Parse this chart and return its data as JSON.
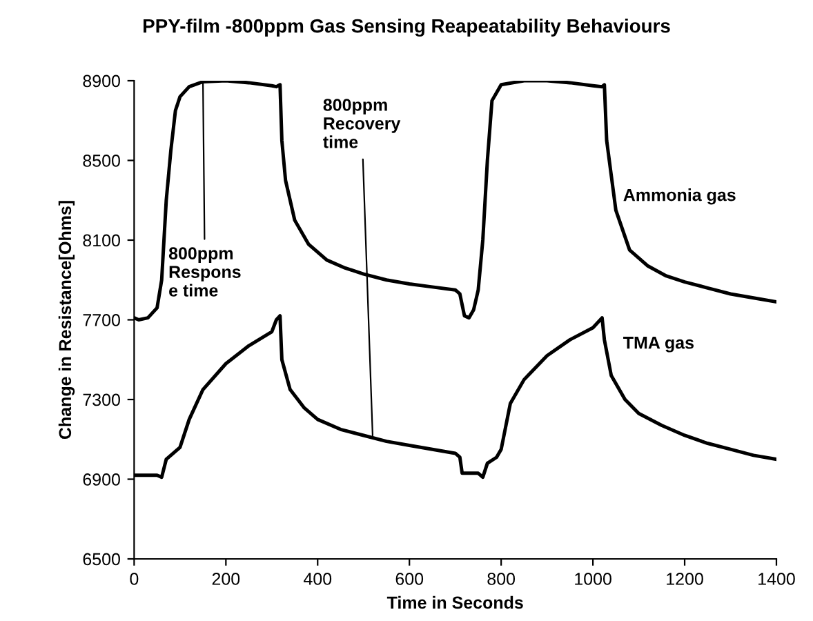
{
  "chart_data": {
    "type": "line",
    "title": "PPY-film -800ppm Gas Sensing Reapeatability Behaviours",
    "xlabel": "Time in Seconds",
    "ylabel": "Change in Resistance[Ohms]",
    "xlim": [
      0,
      1400
    ],
    "xticks": [
      0,
      200,
      400,
      600,
      800,
      1000,
      1200,
      1400
    ],
    "ylim": [
      6500,
      8900
    ],
    "yticks": [
      6500,
      6900,
      7300,
      7700,
      8100,
      8500,
      8900
    ],
    "grid": false,
    "legend": false,
    "marker": "none",
    "line_style": "solid",
    "series": [
      {
        "name": "Ammonia gas",
        "color": "#000000",
        "x": [
          0,
          10,
          30,
          50,
          60,
          70,
          80,
          90,
          100,
          120,
          150,
          200,
          250,
          300,
          310,
          318,
          322,
          330,
          350,
          380,
          420,
          460,
          500,
          550,
          600,
          650,
          700,
          710,
          720,
          730,
          740,
          750,
          760,
          770,
          780,
          800,
          850,
          900,
          950,
          1000,
          1020,
          1025,
          1030,
          1050,
          1080,
          1120,
          1160,
          1200,
          1250,
          1300,
          1350,
          1400
        ],
        "values": [
          7710,
          7700,
          7710,
          7760,
          7900,
          8300,
          8550,
          8750,
          8820,
          8870,
          8895,
          8900,
          8890,
          8875,
          8870,
          8880,
          8600,
          8400,
          8200,
          8080,
          8000,
          7960,
          7930,
          7900,
          7880,
          7865,
          7850,
          7830,
          7720,
          7710,
          7750,
          7850,
          8100,
          8500,
          8800,
          8880,
          8900,
          8900,
          8890,
          8875,
          8870,
          8880,
          8600,
          8250,
          8050,
          7970,
          7920,
          7890,
          7860,
          7830,
          7810,
          7790
        ]
      },
      {
        "name": "TMA gas",
        "color": "#000000",
        "x": [
          0,
          50,
          60,
          70,
          90,
          100,
          120,
          150,
          200,
          250,
          300,
          310,
          318,
          322,
          340,
          370,
          400,
          450,
          500,
          550,
          600,
          650,
          700,
          710,
          715,
          750,
          760,
          770,
          790,
          800,
          820,
          850,
          900,
          950,
          1000,
          1020,
          1025,
          1040,
          1070,
          1100,
          1150,
          1200,
          1250,
          1300,
          1350,
          1400
        ],
        "values": [
          6920,
          6920,
          6910,
          7000,
          7040,
          7060,
          7200,
          7350,
          7480,
          7570,
          7640,
          7700,
          7720,
          7500,
          7350,
          7260,
          7200,
          7150,
          7120,
          7090,
          7070,
          7050,
          7030,
          7010,
          6930,
          6930,
          6910,
          6980,
          7010,
          7050,
          7280,
          7400,
          7520,
          7600,
          7660,
          7710,
          7600,
          7420,
          7300,
          7230,
          7170,
          7120,
          7080,
          7050,
          7020,
          7000
        ]
      }
    ],
    "annotations": [
      {
        "text": "800ppm\nRespons\ne time",
        "x": 150,
        "y": 8895
      },
      {
        "text": "800ppm\nRecovery\ntime",
        "x": 520,
        "y": 7110
      }
    ]
  }
}
